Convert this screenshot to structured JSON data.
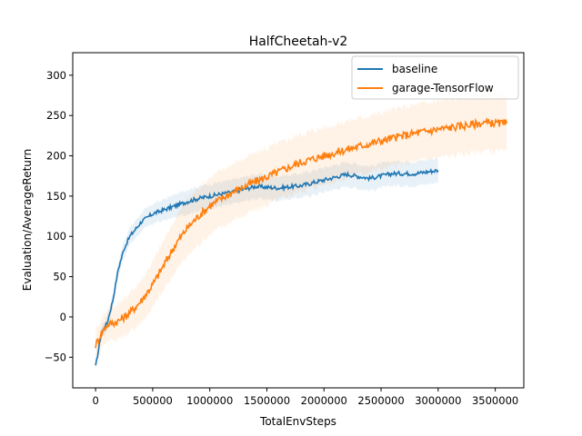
{
  "chart_data": {
    "type": "line",
    "title": "HalfCheetah-v2",
    "xlabel": "TotalEnvSteps",
    "ylabel": "Evaluation/AverageReturn",
    "xlim": [
      -200000,
      3750000
    ],
    "ylim": [
      -88,
      328
    ],
    "xticks": [
      0,
      500000,
      1000000,
      1500000,
      2000000,
      2500000,
      3000000,
      3500000
    ],
    "xtick_labels": [
      "0",
      "500000",
      "1000000",
      "1500000",
      "2000000",
      "2500000",
      "3000000",
      "3500000"
    ],
    "yticks": [
      -50,
      0,
      50,
      100,
      150,
      200,
      250,
      300
    ],
    "ytick_labels": [
      "−50",
      "0",
      "50",
      "100",
      "150",
      "200",
      "250",
      "300"
    ],
    "grid": false,
    "legend_position": "upper right",
    "series": [
      {
        "name": "baseline",
        "color": "#1f77b4",
        "x": [
          0,
          50000,
          100000,
          150000,
          200000,
          250000,
          300000,
          400000,
          500000,
          600000,
          700000,
          800000,
          900000,
          1000000,
          1200000,
          1400000,
          1600000,
          1800000,
          2000000,
          2200000,
          2400000,
          2600000,
          2800000,
          3000000
        ],
        "y": [
          -62,
          -20,
          -8,
          20,
          60,
          85,
          100,
          118,
          128,
          133,
          138,
          143,
          147,
          150,
          155,
          162,
          160,
          163,
          170,
          177,
          172,
          178,
          178,
          182
        ],
        "band": 15
      },
      {
        "name": "garage-TensorFlow",
        "color": "#ff7f0e",
        "x": [
          0,
          50000,
          100000,
          200000,
          300000,
          400000,
          500000,
          600000,
          700000,
          800000,
          900000,
          1000000,
          1200000,
          1400000,
          1600000,
          1800000,
          2000000,
          2200000,
          2400000,
          2600000,
          2800000,
          3000000,
          3200000,
          3400000,
          3600000
        ],
        "y": [
          -35,
          -20,
          -10,
          -5,
          5,
          20,
          40,
          65,
          90,
          110,
          125,
          138,
          155,
          168,
          180,
          192,
          200,
          208,
          215,
          222,
          228,
          233,
          237,
          241,
          240
        ],
        "band": 35
      }
    ]
  }
}
